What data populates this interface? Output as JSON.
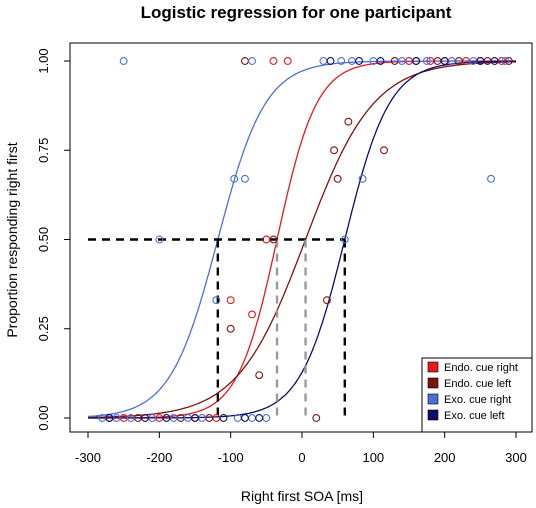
{
  "chart_data": {
    "type": "scatter",
    "title": "Logistic regression for one participant",
    "xlabel": "Right first SOA [ms]",
    "ylabel": "Proportion responding right first",
    "xlim": [
      -300,
      300
    ],
    "ylim": [
      0,
      1
    ],
    "xticks": [
      "-300",
      "-200",
      "-100",
      "0",
      "100",
      "200",
      "300"
    ],
    "yticks": [
      "0.00",
      "0.25",
      "0.50",
      "0.75",
      "1.00"
    ],
    "grid": false,
    "legend_position": "bottom-right",
    "series": [
      {
        "name": "Endo. cue right",
        "color": "#e8181c",
        "curve": {
          "pse": -35,
          "slope": 0.036
        },
        "points": [
          {
            "x": -250,
            "y": 0
          },
          {
            "x": -200,
            "y": 0
          },
          {
            "x": -150,
            "y": 0
          },
          {
            "x": -120,
            "y": 0
          },
          {
            "x": -100,
            "y": 0.33
          },
          {
            "x": -70,
            "y": 0.29
          },
          {
            "x": -50,
            "y": 0.5
          },
          {
            "x": -40,
            "y": 1.0
          },
          {
            "x": -20,
            "y": 1.0
          },
          {
            "x": 150,
            "y": 1.0
          },
          {
            "x": 180,
            "y": 1.0
          },
          {
            "x": 200,
            "y": 1.0
          },
          {
            "x": 230,
            "y": 1.0
          },
          {
            "x": 250,
            "y": 1.0
          },
          {
            "x": 280,
            "y": 1.0
          }
        ]
      },
      {
        "name": "Endo. cue left",
        "color": "#7e1210",
        "curve": {
          "pse": 5,
          "slope": 0.021
        },
        "points": [
          {
            "x": -270,
            "y": 0
          },
          {
            "x": -230,
            "y": 0
          },
          {
            "x": -170,
            "y": 0
          },
          {
            "x": -130,
            "y": 0
          },
          {
            "x": -100,
            "y": 0.25
          },
          {
            "x": -60,
            "y": 0.12
          },
          {
            "x": -40,
            "y": 0.5
          },
          {
            "x": 20,
            "y": 0
          },
          {
            "x": 35,
            "y": 0.33
          },
          {
            "x": 45,
            "y": 0.75
          },
          {
            "x": 50,
            "y": 0.67
          },
          {
            "x": 65,
            "y": 0.83
          },
          {
            "x": 115,
            "y": 0.75
          },
          {
            "x": -80,
            "y": 1.0
          },
          {
            "x": 130,
            "y": 1.0
          },
          {
            "x": 160,
            "y": 1.0
          },
          {
            "x": 190,
            "y": 1.0
          },
          {
            "x": 220,
            "y": 1.0
          },
          {
            "x": 260,
            "y": 1.0
          },
          {
            "x": 290,
            "y": 1.0
          }
        ]
      },
      {
        "name": "Exo. cue right",
        "color": "#4e70d6",
        "curve": {
          "pse": -118,
          "slope": 0.03
        },
        "points": [
          {
            "x": -280,
            "y": 0
          },
          {
            "x": -260,
            "y": 0
          },
          {
            "x": -240,
            "y": 0
          },
          {
            "x": -210,
            "y": 0
          },
          {
            "x": -180,
            "y": 0
          },
          {
            "x": -160,
            "y": 0
          },
          {
            "x": -140,
            "y": 0
          },
          {
            "x": -90,
            "y": 0
          },
          {
            "x": -70,
            "y": 0
          },
          {
            "x": -50,
            "y": 0
          },
          {
            "x": -250,
            "y": 1.0
          },
          {
            "x": -200,
            "y": 0.5
          },
          {
            "x": -120,
            "y": 0.33
          },
          {
            "x": -95,
            "y": 0.67
          },
          {
            "x": -80,
            "y": 0.67
          },
          {
            "x": -70,
            "y": 1.0
          },
          {
            "x": 30,
            "y": 1.0
          },
          {
            "x": 55,
            "y": 1.0
          },
          {
            "x": 60,
            "y": 0.5
          },
          {
            "x": 70,
            "y": 1.0
          },
          {
            "x": 85,
            "y": 0.67
          },
          {
            "x": 100,
            "y": 1.0
          },
          {
            "x": 140,
            "y": 1.0
          },
          {
            "x": 175,
            "y": 1.0
          },
          {
            "x": 210,
            "y": 1.0
          },
          {
            "x": 240,
            "y": 1.0
          },
          {
            "x": 265,
            "y": 0.67
          },
          {
            "x": 285,
            "y": 1.0
          }
        ]
      },
      {
        "name": "Exo. cue left",
        "color": "#0e0d6b",
        "curve": {
          "pse": 60,
          "slope": 0.032
        },
        "points": [
          {
            "x": -270,
            "y": 0
          },
          {
            "x": -220,
            "y": 0
          },
          {
            "x": -190,
            "y": 0
          },
          {
            "x": -150,
            "y": 0
          },
          {
            "x": -110,
            "y": 0
          },
          {
            "x": -80,
            "y": 0
          },
          {
            "x": -60,
            "y": 0
          },
          {
            "x": 40,
            "y": 1.0
          },
          {
            "x": 80,
            "y": 1.0
          },
          {
            "x": 110,
            "y": 1.0
          },
          {
            "x": 160,
            "y": 1.0
          },
          {
            "x": 200,
            "y": 1.0
          },
          {
            "x": 250,
            "y": 1.0
          },
          {
            "x": 270,
            "y": 1.0
          }
        ]
      }
    ],
    "reference_lines": [
      {
        "x": -118,
        "y": 0.5,
        "color": "#000000"
      },
      {
        "x": 60,
        "y": 0.5,
        "color": "#000000"
      },
      {
        "x": -35,
        "y": 0.5,
        "color": "#9a9a9a"
      },
      {
        "x": 5,
        "y": 0.5,
        "color": "#9a9a9a"
      }
    ],
    "horizontal_reference": {
      "y": 0.5,
      "x_from": -300,
      "x_to": 60,
      "color": "#000000"
    }
  }
}
